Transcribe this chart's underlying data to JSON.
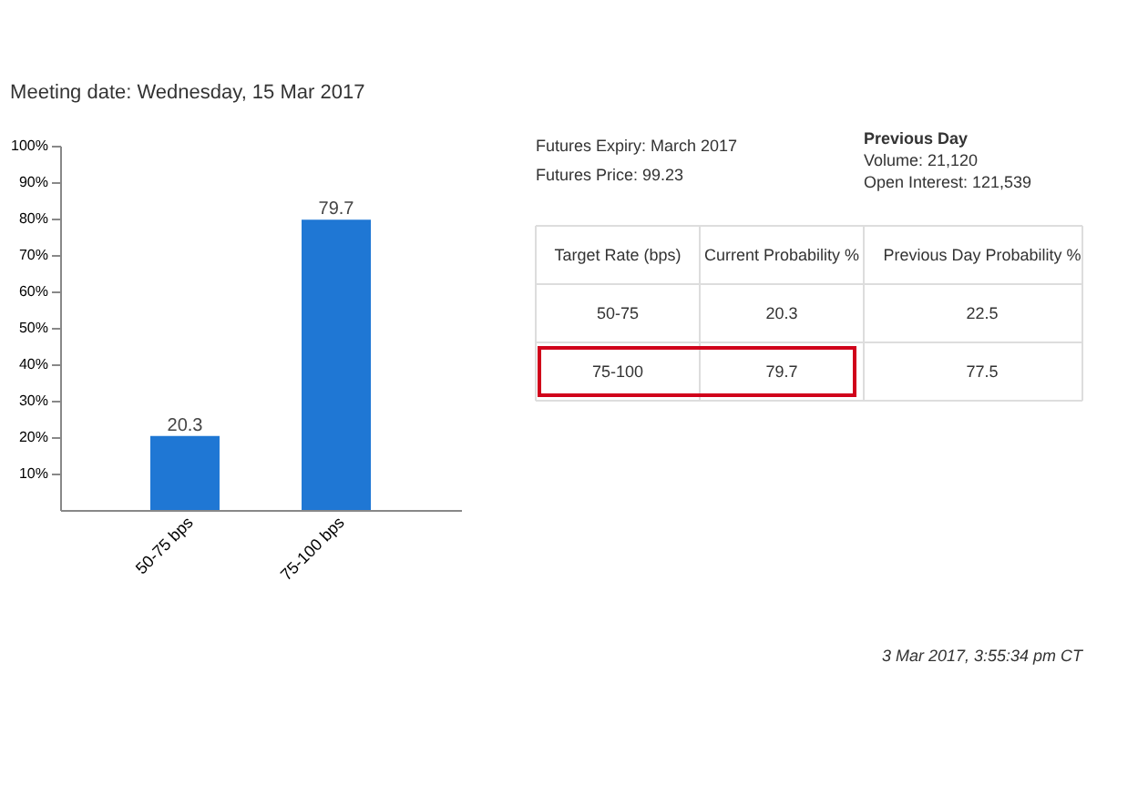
{
  "chart_data": [
    {
      "type": "bar",
      "title": "Meeting date: Wednesday, 15 Mar 2017",
      "categories": [
        "50-75 bps",
        "75-100 bps"
      ],
      "values": [
        20.3,
        79.7
      ],
      "color": "#1f77d4",
      "data_labels": true,
      "ylim": [
        0,
        100
      ],
      "yticks": [
        {
          "value": 10,
          "label": "10%"
        },
        {
          "value": 20,
          "label": "20%"
        },
        {
          "value": 30,
          "label": "30%"
        },
        {
          "value": 40,
          "label": "40%"
        },
        {
          "value": 50,
          "label": "50%"
        },
        {
          "value": 60,
          "label": "60%"
        },
        {
          "value": 70,
          "label": "70%"
        },
        {
          "value": 80,
          "label": "80%"
        },
        {
          "value": 90,
          "label": "90%"
        },
        {
          "value": 100,
          "label": "100%"
        }
      ],
      "grid": false
    },
    {
      "type": "other",
      "annotations": [
        "Futures Expiry: March 2017",
        "Futures Price: 99.23",
        "Previous Day",
        "Volume: 21,120",
        "Open Interest: 121,539",
        "Target Rate (bps)",
        "Current Probability %",
        "Previous Day Probability %",
        "50-75",
        "20.3",
        "22.5",
        "75-100",
        "79.7",
        "77.5",
        "3 Mar 2017, 3:55:34 pm CT"
      ]
    }
  ]
}
